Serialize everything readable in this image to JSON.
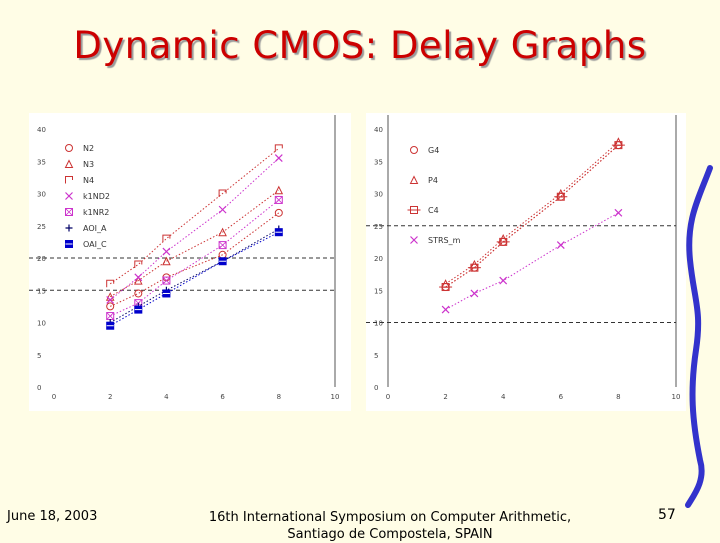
{
  "slide": {
    "title": "Dynamic CMOS: Delay Graphs",
    "footer_date": "June 18, 2003",
    "footer_conference_line1": "16th International Symposium on Computer Arithmetic,",
    "footer_conference_line2": "Santiago de Compostela, SPAIN",
    "page_number": "57"
  },
  "chart_data": [
    {
      "type": "scatter",
      "title": "",
      "xlabel": "",
      "ylabel": "",
      "xlim": [
        0,
        10
      ],
      "ylim": [
        0,
        40
      ],
      "xticks": [
        "0",
        "2",
        "4",
        "6",
        "8",
        "10"
      ],
      "yticks": [
        "0",
        "5",
        "10",
        "15",
        "20",
        "25",
        "30",
        "35",
        "40"
      ],
      "reference_lines_y": [
        15,
        20
      ],
      "legend_position": "top-left",
      "series": [
        {
          "name": "N2",
          "marker": "circle",
          "color": "#cc3333",
          "x": [
            2,
            3,
            4,
            6,
            8
          ],
          "y": [
            12.5,
            14.5,
            17,
            20.5,
            27
          ]
        },
        {
          "name": "N3",
          "marker": "triangle",
          "color": "#cc3333",
          "x": [
            2,
            3,
            4,
            6,
            8
          ],
          "y": [
            14,
            16.5,
            19.5,
            24,
            30.5
          ]
        },
        {
          "name": "N4",
          "marker": "square-open",
          "color": "#cc3333",
          "x": [
            2,
            3,
            4,
            6,
            8
          ],
          "y": [
            16,
            19,
            23,
            30,
            37
          ]
        },
        {
          "name": "k1ND2",
          "marker": "x",
          "color": "#cc33cc",
          "x": [
            2,
            3,
            4,
            6,
            8
          ],
          "y": [
            13.5,
            17,
            21,
            27.5,
            35.5
          ]
        },
        {
          "name": "k1NR2",
          "marker": "square-x",
          "color": "#cc33cc",
          "x": [
            2,
            3,
            4,
            6,
            8
          ],
          "y": [
            11,
            13,
            16.5,
            22,
            29
          ]
        },
        {
          "name": "AOI_A",
          "marker": "plus",
          "color": "#000066",
          "x": [
            2,
            3,
            4,
            6,
            8
          ],
          "y": [
            10,
            12.5,
            15,
            19.5,
            24.5
          ]
        },
        {
          "name": "OAI_C",
          "marker": "square-filled",
          "color": "#0000cc",
          "x": [
            2,
            3,
            4,
            6,
            8
          ],
          "y": [
            9.5,
            12,
            14.5,
            19.5,
            24
          ]
        }
      ]
    },
    {
      "type": "scatter",
      "title": "",
      "xlabel": "",
      "ylabel": "",
      "xlim": [
        0,
        10
      ],
      "ylim": [
        0,
        40
      ],
      "xticks": [
        "0",
        "2",
        "4",
        "6",
        "8",
        "10"
      ],
      "yticks": [
        "0",
        "5",
        "10",
        "15",
        "20",
        "25",
        "30",
        "35",
        "40"
      ],
      "reference_lines_y": [
        10,
        25
      ],
      "legend_position": "top-left",
      "series": [
        {
          "name": "G4",
          "marker": "circle",
          "color": "#cc3333",
          "x": [
            2,
            3,
            4,
            6,
            8
          ],
          "y": [
            15.5,
            18.5,
            22.5,
            29.5,
            37.5
          ]
        },
        {
          "name": "P4",
          "marker": "triangle",
          "color": "#cc3333",
          "x": [
            2,
            3,
            4,
            6,
            8
          ],
          "y": [
            16,
            19,
            23,
            30,
            38
          ]
        },
        {
          "name": "C4",
          "marker": "square-line",
          "color": "#cc3333",
          "x": [
            2,
            3,
            4,
            6,
            8
          ],
          "y": [
            15.5,
            18.5,
            22.5,
            29.5,
            37.5
          ]
        },
        {
          "name": "STRS_m",
          "marker": "x",
          "color": "#cc33cc",
          "x": [
            2,
            3,
            4,
            6,
            8
          ],
          "y": [
            12,
            14.5,
            16.5,
            22,
            27
          ]
        }
      ]
    }
  ]
}
